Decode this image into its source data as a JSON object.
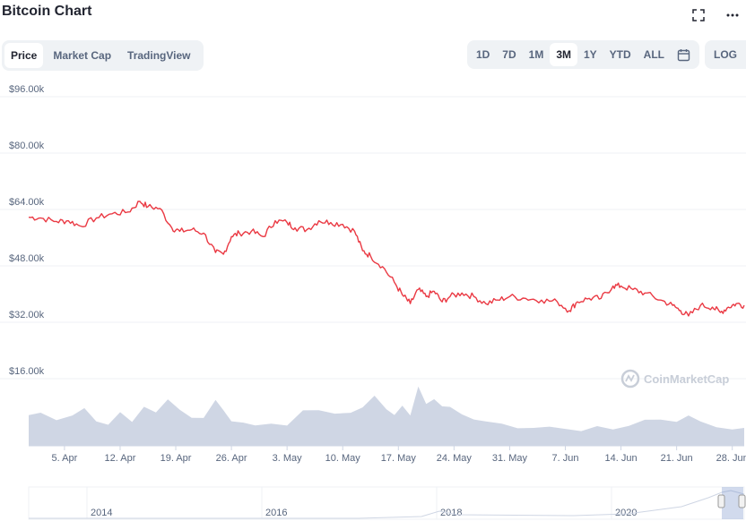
{
  "header": {
    "title": "Bitcoin Chart"
  },
  "icons": {
    "fullscreen": "fullscreen-icon",
    "more": "more-icon",
    "calendar": "calendar-icon"
  },
  "tabs": [
    {
      "label": "Price",
      "active": true
    },
    {
      "label": "Market Cap",
      "active": false
    },
    {
      "label": "TradingView",
      "active": false
    }
  ],
  "ranges": [
    {
      "label": "1D",
      "active": false
    },
    {
      "label": "7D",
      "active": false
    },
    {
      "label": "1M",
      "active": false
    },
    {
      "label": "3M",
      "active": true
    },
    {
      "label": "1Y",
      "active": false
    },
    {
      "label": "YTD",
      "active": false
    },
    {
      "label": "ALL",
      "active": false
    }
  ],
  "log_label": "LOG",
  "watermark": "CoinMarketCap",
  "colors": {
    "line": "#ea3943",
    "volume": "#cfd6e4",
    "grid": "#eff2f5",
    "text": "#58667e"
  },
  "chart_data": {
    "type": "line",
    "xlabel": "",
    "ylabel": "",
    "y_ticks": [
      "$16.00k",
      "$32.00k",
      "$48.00k",
      "$64.00k",
      "$80.00k",
      "$96.00k"
    ],
    "y_tick_values": [
      16000,
      32000,
      48000,
      64000,
      80000,
      96000
    ],
    "ylim": [
      0,
      99000
    ],
    "x_ticks": [
      "5. Apr",
      "12. Apr",
      "19. Apr",
      "26. Apr",
      "3. May",
      "10. May",
      "17. May",
      "24. May",
      "31. May",
      "7. Jun",
      "14. Jun",
      "21. Jun",
      "28. Jun"
    ],
    "x_tick_days": [
      5,
      12,
      19,
      26,
      33,
      40,
      47,
      54,
      61,
      68,
      75,
      82,
      89
    ],
    "xlim_days": [
      0.5,
      90.5
    ],
    "grid": true,
    "series": [
      {
        "type": "line",
        "x_days": [
          0.5,
          2,
          4,
          5.5,
          7,
          9,
          11,
          13,
          14.5,
          15.5,
          17,
          18.5,
          19.5,
          21,
          22.5,
          24,
          25,
          26,
          27,
          28.5,
          30,
          31.5,
          33,
          34,
          35.5,
          37,
          38.5,
          40,
          41.5,
          42.5,
          43.5,
          45,
          46.5,
          47.5,
          48.5,
          49.5,
          50.5,
          51.5,
          52.5,
          53.5,
          55,
          56.5,
          58,
          59.5,
          61,
          63,
          65,
          67,
          68.5,
          69.5,
          71,
          72.5,
          74,
          75,
          76.5,
          78,
          80,
          81.5,
          82.5,
          83.5,
          85,
          86.5,
          87.5,
          88.5,
          89.5,
          90.5
        ],
        "values": [
          59000,
          58800,
          57800,
          58000,
          56500,
          58800,
          60000,
          60500,
          63500,
          62000,
          61500,
          56000,
          55000,
          55500,
          54500,
          49000,
          48500,
          53500,
          54500,
          55000,
          53500,
          58000,
          57500,
          56000,
          55500,
          58000,
          57500,
          57000,
          55000,
          49500,
          48000,
          45000,
          40500,
          37000,
          34500,
          38500,
          36500,
          38000,
          35000,
          36500,
          37500,
          36500,
          34500,
          35500,
          36500,
          36000,
          35500,
          35000,
          32500,
          35000,
          36000,
          36000,
          39500,
          39500,
          38500,
          37500,
          35500,
          34000,
          32500,
          31000,
          34000,
          33500,
          32000,
          33500,
          34500,
          34000
        ]
      },
      {
        "type": "volume",
        "x_days": [
          0.5,
          2,
          4,
          6,
          7.5,
          9,
          10.5,
          12,
          13.5,
          15,
          16.5,
          18,
          19.5,
          21,
          22.5,
          24,
          25,
          26,
          27.5,
          29,
          31,
          33,
          35,
          37,
          39,
          41,
          42.5,
          44,
          45.5,
          46.5,
          47.5,
          48.5,
          49.5,
          50.5,
          51.5,
          52.5,
          53.5,
          55,
          56.5,
          58,
          60,
          62,
          64,
          66,
          68,
          70,
          72,
          74,
          76,
          78,
          80,
          82,
          83.5,
          85,
          87,
          89,
          90.5
        ],
        "values": [
          0.5,
          0.56,
          0.45,
          0.55,
          0.63,
          0.42,
          0.38,
          0.55,
          0.4,
          0.68,
          0.6,
          0.78,
          0.62,
          0.5,
          0.45,
          0.78,
          0.62,
          0.45,
          0.38,
          0.35,
          0.4,
          0.32,
          0.6,
          0.62,
          0.58,
          0.55,
          0.66,
          0.88,
          0.6,
          0.52,
          0.7,
          0.55,
          1.0,
          0.72,
          0.82,
          0.65,
          0.66,
          0.55,
          0.48,
          0.4,
          0.38,
          0.32,
          0.28,
          0.32,
          0.3,
          0.28,
          0.32,
          0.28,
          0.36,
          0.42,
          0.44,
          0.42,
          0.55,
          0.4,
          0.32,
          0.3,
          0.28
        ]
      }
    ],
    "navigator": {
      "x_ticks": [
        "2014",
        "2016",
        "2018",
        "2020"
      ]
    }
  }
}
